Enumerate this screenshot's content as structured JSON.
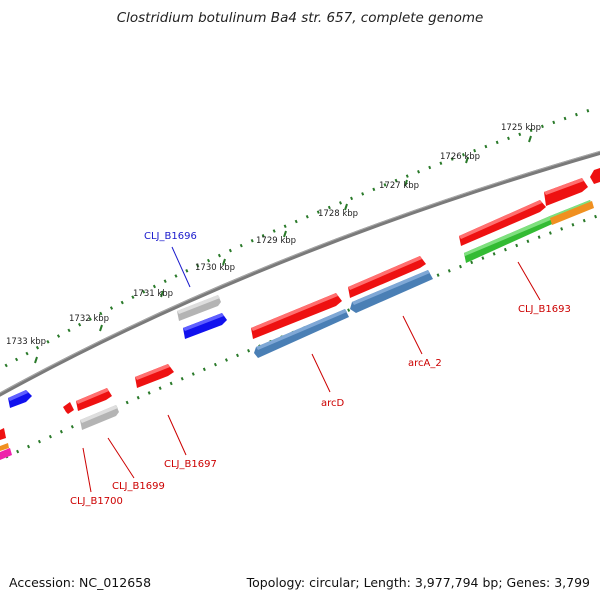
{
  "title": "Clostridium botulinum Ba4 str. 657, complete genome",
  "footer": {
    "accession": "Accession: NC_012658",
    "topology": "Topology: circular; Length: 3,977,794 bp; Genes: 3,799"
  },
  "ruler": {
    "ticks": [
      "1725 kbp",
      "1726 kbp",
      "1727 kbp",
      "1728 kbp",
      "1729 kbp",
      "1730 kbp",
      "1731 kbp",
      "1732 kbp",
      "1733 kbp"
    ]
  },
  "genes": {
    "CLJ_B1696": "CLJ_B1696",
    "CLJ_B1693": "CLJ_B1693",
    "arcA_2": "arcA_2",
    "arcD": "arcD",
    "CLJ_B1697": "CLJ_B1697",
    "CLJ_B1699": "CLJ_B1699",
    "CLJ_B1700": "CLJ_B1700"
  },
  "colors": {
    "red": "#ee1111",
    "blue": "#1111ee",
    "steelblue": "#4a7fb5",
    "green": "#33bb33",
    "orange": "#f09020",
    "gray": "#b4b4b4",
    "magenta": "#ee22aa",
    "tick": "#2a7a2a",
    "backbone": "#7a7a7a",
    "label_blue": "#1a1acc",
    "label_red": "#cc0000"
  }
}
